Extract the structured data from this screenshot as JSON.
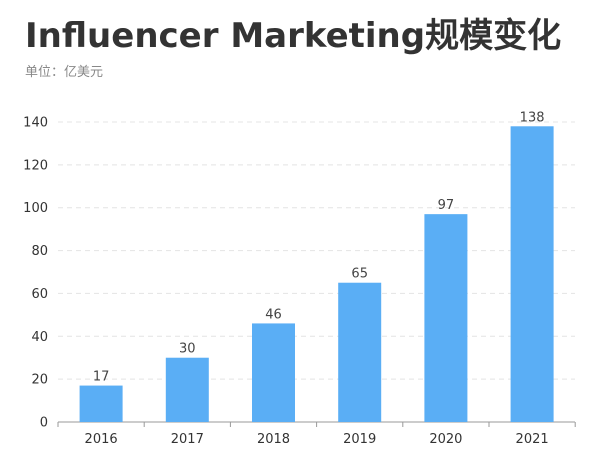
{
  "title": "Influencer Marketing规模变化",
  "subtitle": "单位：亿美元",
  "colors": {
    "bar": "#5aaef5",
    "grid": "#e4e4e4",
    "axis": "#999999"
  },
  "chart_data": {
    "type": "bar",
    "title": "Influencer Marketing规模变化",
    "subtitle": "单位：亿美元",
    "xlabel": "",
    "ylabel": "",
    "categories": [
      "2016",
      "2017",
      "2018",
      "2019",
      "2020",
      "2021"
    ],
    "values": [
      17,
      30,
      46,
      65,
      97,
      138
    ],
    "ylim": [
      0,
      140
    ],
    "yticks": [
      0,
      20,
      40,
      60,
      80,
      100,
      120,
      140
    ],
    "grid": true,
    "grid_style": "dashed-horizontal",
    "legend": "none",
    "data_labels": true
  }
}
